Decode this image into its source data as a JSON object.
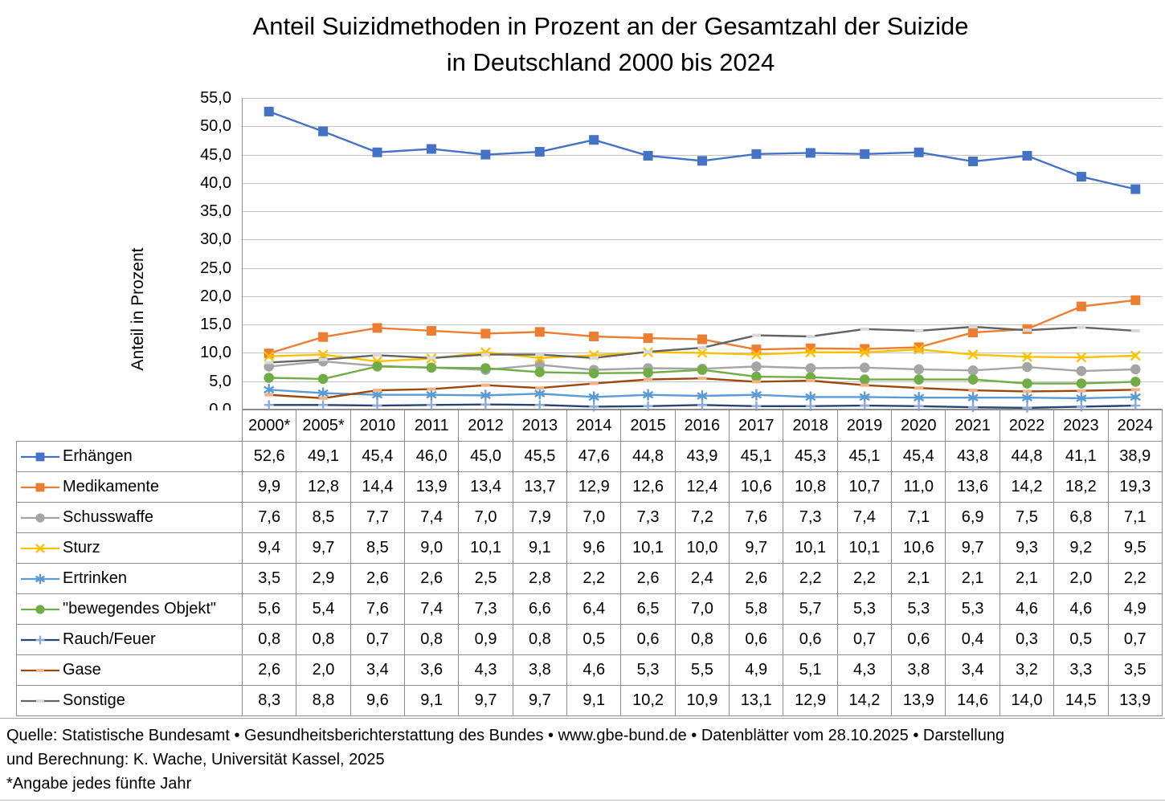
{
  "title": {
    "line1": "Anteil Suizidmethoden in Prozent an der Gesamtzahl der Suizide",
    "line2": "in Deutschland 2000 bis 2024"
  },
  "chart_data": {
    "type": "line",
    "x": [
      "2000*",
      "2005*",
      "2010",
      "2011",
      "2012",
      "2013",
      "2014",
      "2015",
      "2016",
      "2017",
      "2018",
      "2019",
      "2020",
      "2021",
      "2022",
      "2023",
      "2024"
    ],
    "ylabel": "Anteil in Prozent",
    "ylim": [
      0,
      55
    ],
    "ytick_step": 5,
    "grid": true,
    "decimal": "comma",
    "legend_position": "table-rows-left",
    "series": [
      {
        "name": "Erhängen",
        "color": "#4472C4",
        "marker": "square",
        "marker_color": "#4472C4",
        "values": [
          52.6,
          49.1,
          45.4,
          46.0,
          45.0,
          45.5,
          47.6,
          44.8,
          43.9,
          45.1,
          45.3,
          45.1,
          45.4,
          43.8,
          44.8,
          41.1,
          38.9
        ]
      },
      {
        "name": "Medikamente",
        "color": "#ED7D31",
        "marker": "square",
        "marker_color": "#ED7D31",
        "values": [
          9.9,
          12.8,
          14.4,
          13.9,
          13.4,
          13.7,
          12.9,
          12.6,
          12.4,
          10.6,
          10.8,
          10.7,
          11.0,
          13.6,
          14.2,
          18.2,
          19.3
        ]
      },
      {
        "name": "Schusswaffe",
        "color": "#A5A5A5",
        "marker": "circle",
        "marker_color": "#A5A5A5",
        "values": [
          7.6,
          8.5,
          7.7,
          7.4,
          7.0,
          7.9,
          7.0,
          7.3,
          7.2,
          7.6,
          7.3,
          7.4,
          7.1,
          6.9,
          7.5,
          6.8,
          7.1
        ]
      },
      {
        "name": "Sturz",
        "color": "#FFC000",
        "marker": "x",
        "marker_color": "#FFC000",
        "values": [
          9.4,
          9.7,
          8.5,
          9.0,
          10.1,
          9.1,
          9.6,
          10.1,
          10.0,
          9.7,
          10.1,
          10.1,
          10.6,
          9.7,
          9.3,
          9.2,
          9.5
        ]
      },
      {
        "name": "Ertrinken",
        "color": "#5B9BD5",
        "marker": "asterisk",
        "marker_color": "#5B9BD5",
        "values": [
          3.5,
          2.9,
          2.6,
          2.6,
          2.5,
          2.8,
          2.2,
          2.6,
          2.4,
          2.6,
          2.2,
          2.2,
          2.1,
          2.1,
          2.1,
          2.0,
          2.2
        ]
      },
      {
        "name": "\"bewegendes Objekt\"",
        "color": "#70AD47",
        "marker": "circle",
        "marker_color": "#70AD47",
        "values": [
          5.6,
          5.4,
          7.6,
          7.4,
          7.3,
          6.6,
          6.4,
          6.5,
          7.0,
          5.8,
          5.7,
          5.3,
          5.3,
          5.3,
          4.6,
          4.6,
          4.9
        ]
      },
      {
        "name": "Rauch/Feuer",
        "color": "#264478",
        "marker": "plus",
        "marker_color": "#8FAADC",
        "values": [
          0.8,
          0.8,
          0.7,
          0.8,
          0.9,
          0.8,
          0.5,
          0.6,
          0.8,
          0.6,
          0.6,
          0.7,
          0.6,
          0.4,
          0.3,
          0.5,
          0.7
        ]
      },
      {
        "name": "Gase",
        "color": "#9E480E",
        "marker": "dash",
        "marker_color": "#F4B183",
        "values": [
          2.6,
          2.0,
          3.4,
          3.6,
          4.3,
          3.8,
          4.6,
          5.3,
          5.5,
          4.9,
          5.1,
          4.3,
          3.8,
          3.4,
          3.2,
          3.3,
          3.5
        ]
      },
      {
        "name": "Sonstige",
        "color": "#636363",
        "marker": "dash",
        "marker_color": "#D9D9D9",
        "values": [
          8.3,
          8.8,
          9.6,
          9.1,
          9.7,
          9.7,
          9.1,
          10.2,
          10.9,
          13.1,
          12.9,
          14.2,
          13.9,
          14.6,
          14.0,
          14.5,
          13.9
        ]
      }
    ]
  },
  "style": {
    "grid_color": "#C3C3C3",
    "axis_color": "#909090",
    "table_border_color": "#8C8C8C",
    "text_color": "#000000",
    "background": "#FFFFFF"
  },
  "footer": {
    "line1": "Quelle: Statistische Bundesamt • Gesundheitsberichterstattung des Bundes • www.gbe-bund.de • Datenblätter vom 28.10.2025 • Darstellung",
    "line2": "und Berechnung: K. Wache, Universität Kassel, 2025",
    "note": "*Angabe jedes fünfte Jahr"
  }
}
